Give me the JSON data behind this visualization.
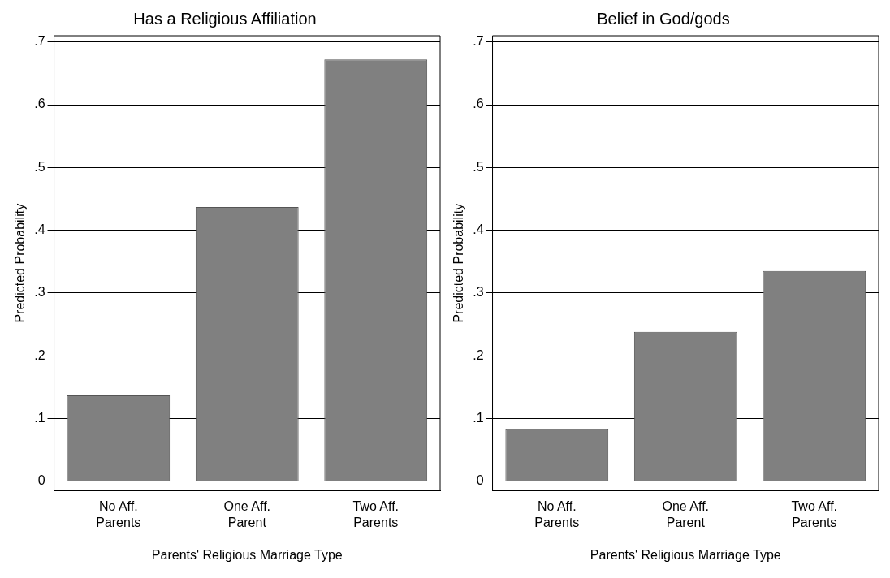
{
  "chart_data": [
    {
      "type": "bar",
      "title": "Has a Religious Affiliation",
      "xlabel": "Parents' Religious Marriage Type",
      "ylabel": "Predicted Probability",
      "categories": [
        "No Aff. Parents",
        "One Aff. Parent",
        "Two Aff. Parents"
      ],
      "values": [
        0.137,
        0.437,
        0.672
      ],
      "color": "#808080",
      "ylim": [
        -0.015,
        0.71
      ],
      "yticks": [
        0,
        {
          "value": 0.1,
          "label": ".1"
        },
        {
          "value": 0.2,
          "label": ".2"
        },
        {
          "value": 0.3,
          "label": ".3"
        },
        {
          "value": 0.4,
          "label": ".4"
        },
        {
          "value": 0.5,
          "label": ".5"
        },
        {
          "value": 0.6,
          "label": ".6"
        },
        {
          "value": 0.7,
          "label": ".7"
        }
      ],
      "grid": "y"
    },
    {
      "type": "bar",
      "title": "Belief in God/gods",
      "xlabel": "Parents' Religious Marriage Type",
      "ylabel": "Predicted Probability",
      "categories": [
        "No Aff. Parents",
        "One Aff. Parent",
        "Two Aff. Parents"
      ],
      "values": [
        0.083,
        0.238,
        0.335
      ],
      "color": "#808080",
      "ylim": [
        -0.015,
        0.71
      ],
      "yticks": [
        0,
        {
          "value": 0.1,
          "label": ".1"
        },
        {
          "value": 0.2,
          "label": ".2"
        },
        {
          "value": 0.3,
          "label": ".3"
        },
        {
          "value": 0.4,
          "label": ".4"
        },
        {
          "value": 0.5,
          "label": ".5"
        },
        {
          "value": 0.6,
          "label": ".6"
        },
        {
          "value": 0.7,
          "label": ".7"
        }
      ],
      "grid": "y"
    }
  ]
}
